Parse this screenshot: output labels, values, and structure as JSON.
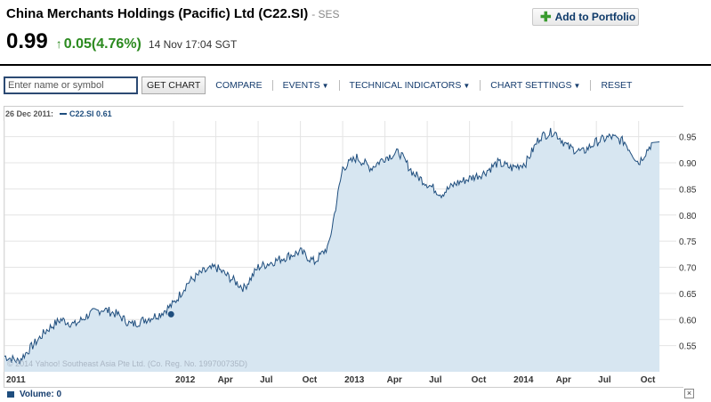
{
  "header": {
    "company": "China Merchants Holdings (Pacific) Ltd (C22.SI)",
    "exchange": "- SES",
    "add_portfolio": "Add to Portfolio",
    "price": "0.99",
    "change_arrow": "↑",
    "change": "0.05(4.76%)",
    "timestamp": "14 Nov 17:04 SGT"
  },
  "toolbar": {
    "placeholder": "Enter name or symbol",
    "get_chart": "GET CHART",
    "compare": "COMPARE",
    "events": "EVENTS",
    "technical_indicators": "TECHNICAL INDICATORS",
    "chart_settings": "CHART SETTINGS",
    "reset": "RESET",
    "caret": "▼"
  },
  "legend": {
    "date": "26 Dec 2011:",
    "series": "C22.SI 0.61"
  },
  "volume": {
    "label": "Volume: 0",
    "close": "×"
  },
  "chart_data": {
    "type": "area",
    "title": "",
    "xlabel": "",
    "ylabel": "",
    "ylim": [
      0.5,
      0.98
    ],
    "y_ticks": [
      "0.55",
      "0.60",
      "0.65",
      "0.70",
      "0.75",
      "0.80",
      "0.85",
      "0.90",
      "0.95"
    ],
    "x_ticks": [
      "2011",
      "2012",
      "Apr",
      "Jul",
      "Oct",
      "2013",
      "Apr",
      "Jul",
      "Oct",
      "2014",
      "Apr",
      "Jul",
      "Oct"
    ],
    "watermark": "© 2014 Yahoo! Southeast Asia Pte Ltd. (Co. Reg. No. 199700735D)",
    "series": [
      {
        "name": "C22.SI",
        "x": [
          "2011-01",
          "2011-02",
          "2011-03",
          "2011-04",
          "2011-05",
          "2011-06",
          "2011-07",
          "2011-08",
          "2011-09",
          "2011-10",
          "2011-11",
          "2011-12",
          "2012-01",
          "2012-02",
          "2012-03",
          "2012-04",
          "2012-05",
          "2012-06",
          "2012-07",
          "2012-08",
          "2012-09",
          "2012-10",
          "2012-11",
          "2012-12",
          "2013-01",
          "2013-02",
          "2013-03",
          "2013-04",
          "2013-05",
          "2013-06",
          "2013-07",
          "2013-08",
          "2013-09",
          "2013-10",
          "2013-11",
          "2013-12",
          "2014-01",
          "2014-02",
          "2014-03",
          "2014-04",
          "2014-05",
          "2014-06",
          "2014-07",
          "2014-08",
          "2014-09",
          "2014-10",
          "2014-11"
        ],
        "values": [
          0.53,
          0.52,
          0.55,
          0.58,
          0.6,
          0.59,
          0.61,
          0.62,
          0.61,
          0.59,
          0.6,
          0.61,
          0.63,
          0.67,
          0.69,
          0.7,
          0.68,
          0.66,
          0.7,
          0.71,
          0.72,
          0.73,
          0.71,
          0.74,
          0.89,
          0.91,
          0.89,
          0.91,
          0.92,
          0.88,
          0.86,
          0.84,
          0.86,
          0.87,
          0.88,
          0.9,
          0.89,
          0.9,
          0.95,
          0.96,
          0.93,
          0.92,
          0.94,
          0.95,
          0.94,
          0.9,
          0.94
        ]
      }
    ],
    "highlight_point": {
      "x": "2011-12-26",
      "value": 0.61
    },
    "colors": {
      "line": "#1f4e7e",
      "fill": "#d7e6f1",
      "grid": "#e4e4e4"
    }
  }
}
